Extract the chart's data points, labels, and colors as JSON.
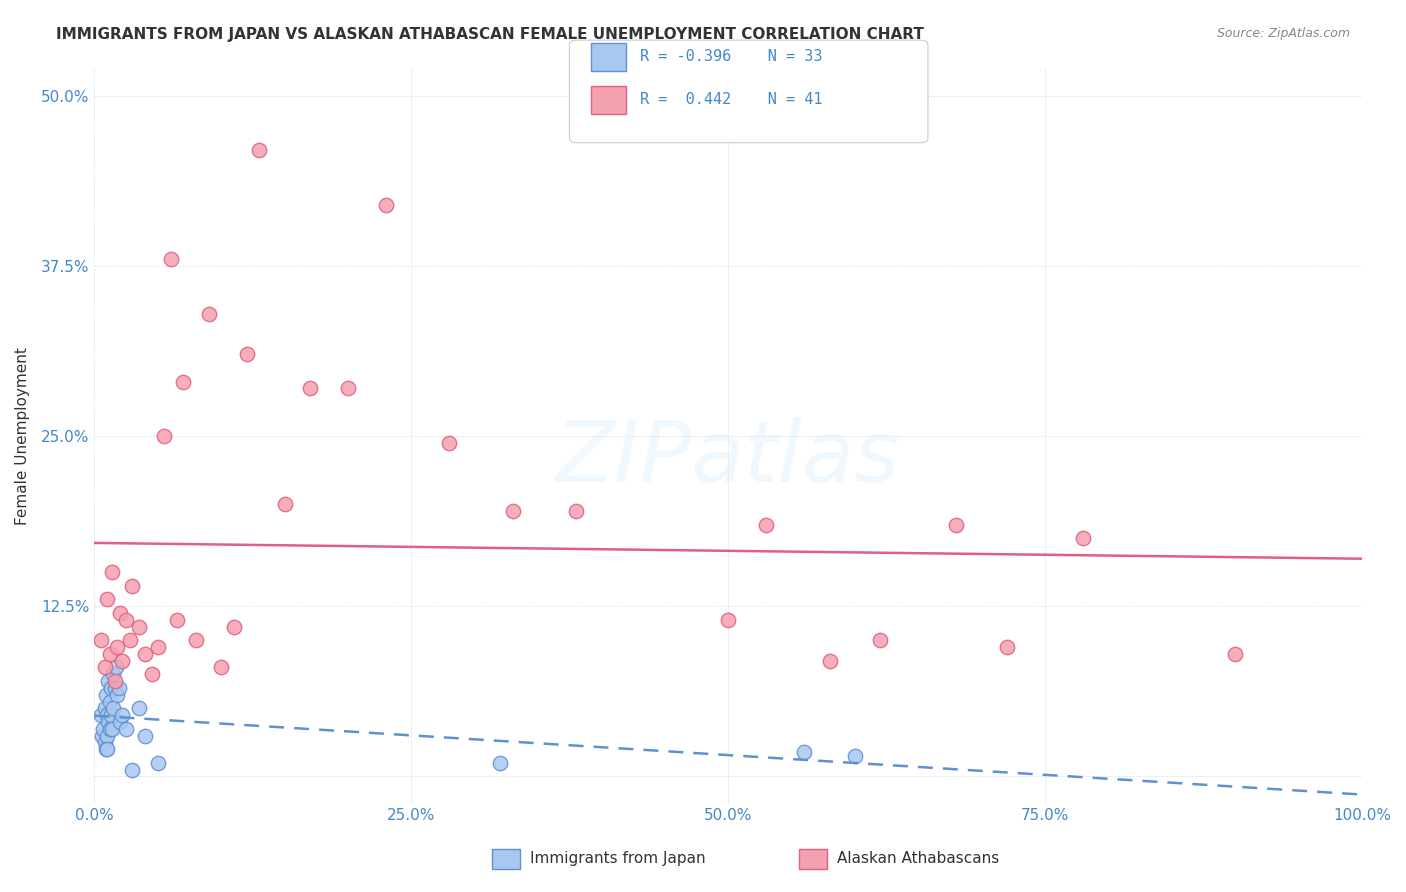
{
  "title": "IMMIGRANTS FROM JAPAN VS ALASKAN ATHABASCAN FEMALE UNEMPLOYMENT CORRELATION CHART",
  "source": "Source: ZipAtlas.com",
  "xlabel": "",
  "ylabel": "Female Unemployment",
  "xlim": [
    0.0,
    1.0
  ],
  "ylim": [
    -0.02,
    0.52
  ],
  "x_ticks": [
    0.0,
    0.25,
    0.5,
    0.75,
    1.0
  ],
  "x_tick_labels": [
    "0.0%",
    "25.0%",
    "50.0%",
    "75.0%",
    "100.0%"
  ],
  "y_ticks": [
    0.0,
    0.125,
    0.25,
    0.375,
    0.5
  ],
  "y_tick_labels": [
    "",
    "12.5%",
    "25.0%",
    "37.5%",
    "50.0%"
  ],
  "color_blue": "#a8c8f0",
  "color_pink": "#f5a0b0",
  "line_color_blue": "#6090d0",
  "line_color_pink": "#e06080",
  "title_fontsize": 11,
  "source_fontsize": 9,
  "scatter_size": 108,
  "japan_x": [
    0.005,
    0.006,
    0.007,
    0.008,
    0.008,
    0.009,
    0.009,
    0.01,
    0.01,
    0.01,
    0.011,
    0.011,
    0.012,
    0.012,
    0.013,
    0.013,
    0.014,
    0.015,
    0.015,
    0.016,
    0.017,
    0.018,
    0.019,
    0.02,
    0.022,
    0.025,
    0.03,
    0.035,
    0.04,
    0.05,
    0.32,
    0.56,
    0.6
  ],
  "japan_y": [
    0.045,
    0.03,
    0.035,
    0.05,
    0.025,
    0.02,
    0.06,
    0.045,
    0.03,
    0.02,
    0.07,
    0.04,
    0.055,
    0.035,
    0.045,
    0.065,
    0.035,
    0.075,
    0.05,
    0.065,
    0.08,
    0.06,
    0.065,
    0.04,
    0.045,
    0.035,
    0.005,
    0.05,
    0.03,
    0.01,
    0.01,
    0.018,
    0.015
  ],
  "athabascan_x": [
    0.005,
    0.008,
    0.01,
    0.012,
    0.014,
    0.016,
    0.018,
    0.02,
    0.022,
    0.025,
    0.028,
    0.03,
    0.035,
    0.04,
    0.045,
    0.05,
    0.055,
    0.06,
    0.065,
    0.07,
    0.08,
    0.09,
    0.1,
    0.11,
    0.12,
    0.13,
    0.15,
    0.17,
    0.2,
    0.23,
    0.28,
    0.33,
    0.38,
    0.5,
    0.53,
    0.58,
    0.62,
    0.68,
    0.72,
    0.78,
    0.9
  ],
  "athabascan_y": [
    0.1,
    0.08,
    0.13,
    0.09,
    0.15,
    0.07,
    0.095,
    0.12,
    0.085,
    0.115,
    0.1,
    0.14,
    0.11,
    0.09,
    0.075,
    0.095,
    0.25,
    0.38,
    0.115,
    0.29,
    0.1,
    0.34,
    0.08,
    0.11,
    0.31,
    0.46,
    0.2,
    0.285,
    0.285,
    0.42,
    0.245,
    0.195,
    0.195,
    0.115,
    0.185,
    0.085,
    0.1,
    0.185,
    0.095,
    0.175,
    0.09
  ]
}
